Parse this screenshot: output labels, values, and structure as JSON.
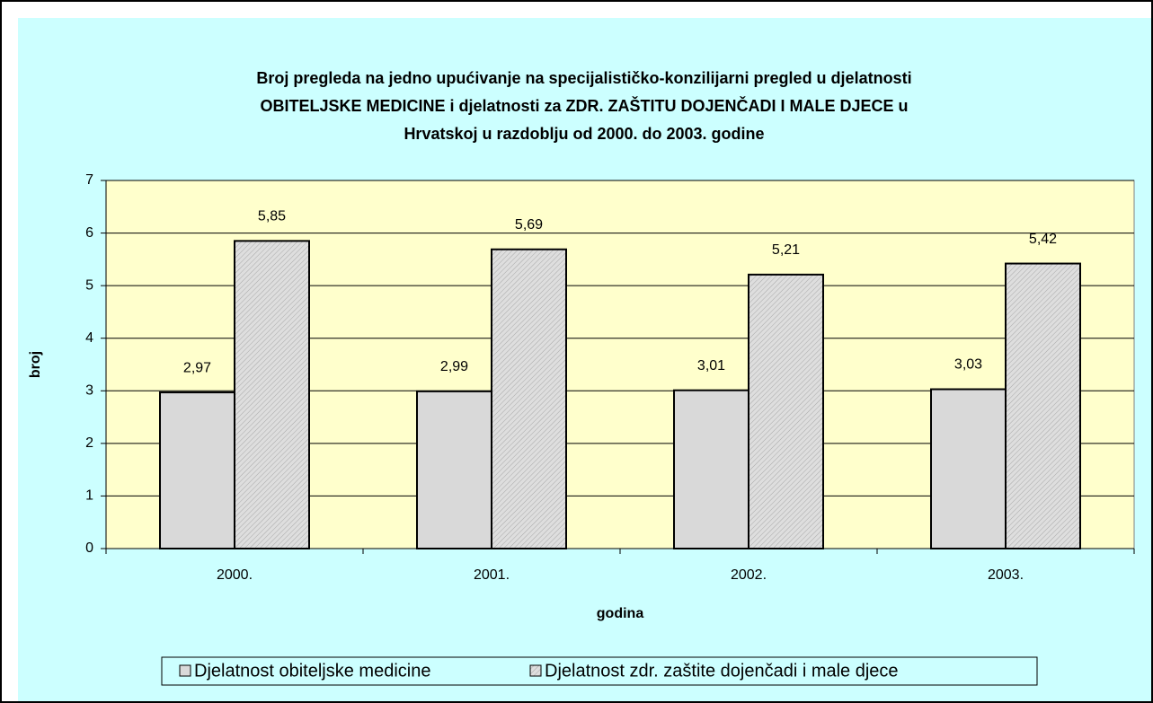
{
  "chart_data": {
    "type": "bar",
    "title": [
      "Broj pregleda na jedno upućivanje na specijalističko-konzilijarni pregled u djelatnosti",
      "OBITELJSKE MEDICINE i djelatnosti za ZDR. ZAŠTITU DOJENČADI I MALE DJECE u",
      "Hrvatskoj u razdoblju od 2000. do 2003. godine"
    ],
    "xlabel": "godina",
    "ylabel": "broj",
    "categories": [
      "2000.",
      "2001.",
      "2002.",
      "2003."
    ],
    "series": [
      {
        "name": "Djelatnost obiteljske medicine",
        "color": "#d9d9d9",
        "values": [
          2.97,
          2.99,
          3.01,
          3.03
        ],
        "value_labels": [
          "2,97",
          "2,99",
          "3,01",
          "3,03"
        ]
      },
      {
        "name": "Djelatnost zdr. zaštite dojenčadi i male djece",
        "color": "#dedede",
        "pattern": "hatch",
        "values": [
          5.85,
          5.69,
          5.21,
          5.42
        ],
        "value_labels": [
          "5,85",
          "5,69",
          "5,21",
          "5,42"
        ]
      }
    ],
    "ylim": [
      0,
      7
    ],
    "yticks": [
      0,
      1,
      2,
      3,
      4,
      5,
      6,
      7
    ],
    "grid": true,
    "background": "#ccffff",
    "plot_background": "#ffffcc",
    "legend": "bottom"
  }
}
